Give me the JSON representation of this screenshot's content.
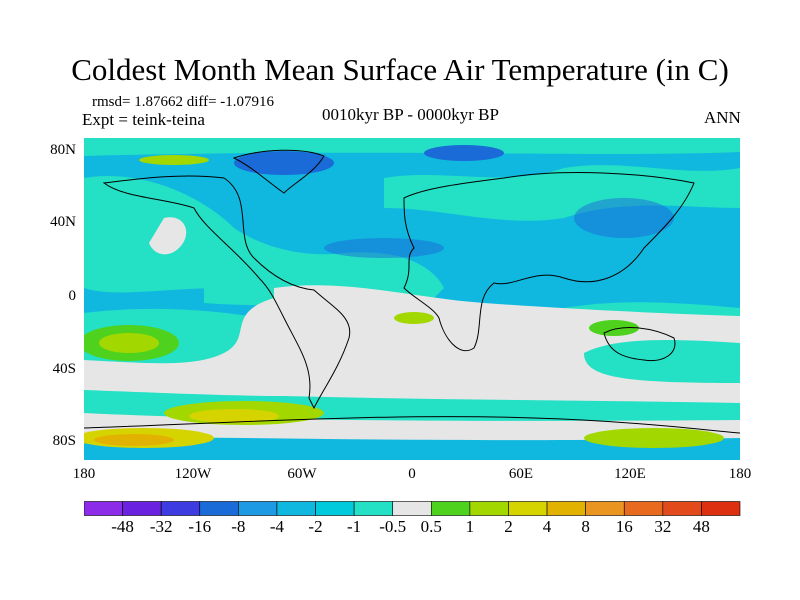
{
  "title": "Coldest Month Mean Surface Air Temperature (in C)",
  "stats": "rmsd= 1.87662 diff= -1.07916",
  "experiment": "Expt = teink-teina",
  "period": "0010kyr BP - 0000kyr BP",
  "season": "ANN",
  "axes": {
    "x_ticks": [
      "180",
      "120W",
      "60W",
      "0",
      "60E",
      "120E",
      "180"
    ],
    "y_ticks": [
      "80N",
      "40N",
      "0",
      "40S",
      "80S"
    ]
  },
  "colorbar": {
    "labels": [
      "-48",
      "-32",
      "-16",
      "-8",
      "-4",
      "-2",
      "-1",
      "-0.5",
      "0.5",
      "1",
      "2",
      "4",
      "8",
      "16",
      "32",
      "48"
    ],
    "colors": [
      "#8c2be8",
      "#6a22e0",
      "#3c3ce0",
      "#1a6ad8",
      "#1e9ae4",
      "#10b8e0",
      "#00cadc",
      "#24e0c4",
      "#e6e6e6",
      "#4ed21e",
      "#a2d800",
      "#d6d400",
      "#e2b200",
      "#ea9422",
      "#e86a1e",
      "#e24a1c",
      "#dc3010"
    ]
  }
}
